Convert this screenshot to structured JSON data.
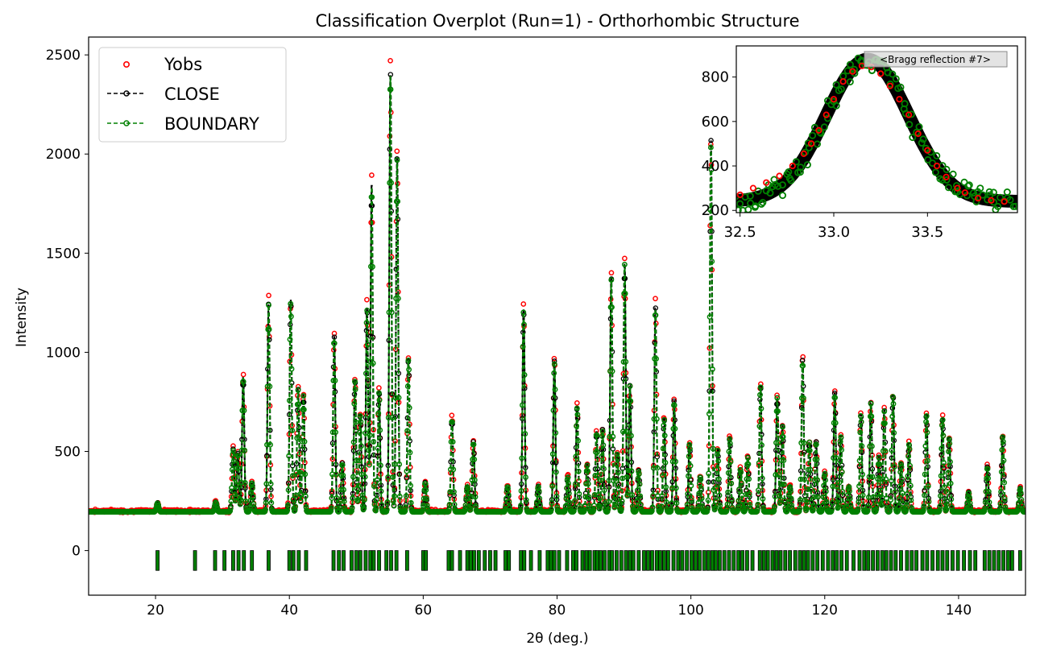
{
  "chart_data": [
    {
      "type": "scatter",
      "title": "Classification Overplot (Run=1) - Orthorhombic Structure",
      "xlabel": "2θ (deg.)",
      "ylabel": "Intensity",
      "xlim": [
        10,
        150
      ],
      "ylim": [
        -225,
        2590
      ],
      "xticks": [
        20,
        40,
        60,
        80,
        100,
        120,
        140
      ],
      "yticks": [
        0,
        500,
        1000,
        1500,
        2000,
        2500
      ],
      "grid": false,
      "legend_position": "top-left",
      "legend": [
        {
          "label": "Yobs",
          "color": "#ff0000",
          "style": "open-circle"
        },
        {
          "label": "CLOSE",
          "color": "#000000",
          "style": "dashed-line-circle"
        },
        {
          "label": "BOUNDARY",
          "color": "#008000",
          "style": "dashed-line-circle"
        }
      ],
      "background": 200,
      "peaks": [
        {
          "x": 20.3,
          "y": 245
        },
        {
          "x": 29.0,
          "y": 250
        },
        {
          "x": 31.6,
          "y": 520
        },
        {
          "x": 32.3,
          "y": 500
        },
        {
          "x": 33.1,
          "y": 895
        },
        {
          "x": 34.4,
          "y": 350
        },
        {
          "x": 36.9,
          "y": 1270
        },
        {
          "x": 40.2,
          "y": 1285
        },
        {
          "x": 41.3,
          "y": 830
        },
        {
          "x": 42.1,
          "y": 800
        },
        {
          "x": 46.7,
          "y": 1100
        },
        {
          "x": 47.9,
          "y": 450
        },
        {
          "x": 49.8,
          "y": 880
        },
        {
          "x": 50.6,
          "y": 700
        },
        {
          "x": 51.6,
          "y": 1250
        },
        {
          "x": 52.3,
          "y": 1880
        },
        {
          "x": 53.4,
          "y": 820
        },
        {
          "x": 55.1,
          "y": 2455
        },
        {
          "x": 56.1,
          "y": 2020
        },
        {
          "x": 57.8,
          "y": 990
        },
        {
          "x": 60.3,
          "y": 350
        },
        {
          "x": 64.3,
          "y": 680
        },
        {
          "x": 66.6,
          "y": 330
        },
        {
          "x": 67.5,
          "y": 560
        },
        {
          "x": 72.6,
          "y": 330
        },
        {
          "x": 75.0,
          "y": 1240
        },
        {
          "x": 77.2,
          "y": 330
        },
        {
          "x": 79.6,
          "y": 970
        },
        {
          "x": 81.6,
          "y": 380
        },
        {
          "x": 83.0,
          "y": 740
        },
        {
          "x": 84.5,
          "y": 440
        },
        {
          "x": 85.9,
          "y": 610
        },
        {
          "x": 86.8,
          "y": 620
        },
        {
          "x": 88.1,
          "y": 1400
        },
        {
          "x": 89.0,
          "y": 500
        },
        {
          "x": 90.1,
          "y": 1480
        },
        {
          "x": 90.9,
          "y": 850
        },
        {
          "x": 92.2,
          "y": 410
        },
        {
          "x": 94.7,
          "y": 1250
        },
        {
          "x": 96.0,
          "y": 680
        },
        {
          "x": 97.5,
          "y": 770
        },
        {
          "x": 99.8,
          "y": 550
        },
        {
          "x": 101.4,
          "y": 380
        },
        {
          "x": 103.0,
          "y": 2100
        },
        {
          "x": 104.0,
          "y": 520
        },
        {
          "x": 105.8,
          "y": 580
        },
        {
          "x": 107.4,
          "y": 420
        },
        {
          "x": 108.5,
          "y": 480
        },
        {
          "x": 110.4,
          "y": 850
        },
        {
          "x": 112.9,
          "y": 790
        },
        {
          "x": 113.7,
          "y": 640
        },
        {
          "x": 114.8,
          "y": 330
        },
        {
          "x": 116.7,
          "y": 980
        },
        {
          "x": 117.7,
          "y": 560
        },
        {
          "x": 118.7,
          "y": 560
        },
        {
          "x": 120.0,
          "y": 400
        },
        {
          "x": 121.5,
          "y": 810
        },
        {
          "x": 122.4,
          "y": 590
        },
        {
          "x": 123.6,
          "y": 330
        },
        {
          "x": 125.4,
          "y": 700
        },
        {
          "x": 126.9,
          "y": 760
        },
        {
          "x": 128.1,
          "y": 480
        },
        {
          "x": 128.9,
          "y": 720
        },
        {
          "x": 130.2,
          "y": 800
        },
        {
          "x": 131.4,
          "y": 450
        },
        {
          "x": 132.6,
          "y": 550
        },
        {
          "x": 135.2,
          "y": 700
        },
        {
          "x": 137.6,
          "y": 680
        },
        {
          "x": 138.6,
          "y": 580
        },
        {
          "x": 141.5,
          "y": 300
        },
        {
          "x": 144.3,
          "y": 430
        },
        {
          "x": 146.6,
          "y": 590
        },
        {
          "x": 149.2,
          "y": 320
        }
      ],
      "bragg_reflections": [
        20.3,
        25.9,
        28.9,
        30.3,
        31.6,
        32.4,
        33.2,
        34.4,
        36.9,
        40.0,
        40.6,
        41.4,
        42.5,
        46.6,
        47.4,
        48.1,
        49.3,
        50.0,
        50.6,
        51.4,
        52.1,
        52.6,
        53.4,
        54.5,
        55.2,
        56.0,
        57.6,
        60.0,
        60.4,
        63.8,
        64.3,
        65.5,
        66.6,
        67.1,
        67.6,
        68.3,
        69.2,
        70.0,
        70.8,
        72.3,
        72.8,
        74.6,
        75.1,
        76.1,
        77.4,
        78.6,
        79.1,
        79.6,
        80.3,
        81.5,
        82.4,
        82.9,
        83.8,
        84.4,
        84.9,
        85.6,
        86.0,
        86.5,
        87.1,
        87.8,
        88.2,
        88.9,
        89.6,
        90.3,
        90.9,
        91.4,
        92.2,
        93.0,
        93.6,
        94.2,
        94.9,
        95.4,
        96.0,
        96.6,
        97.4,
        98.1,
        98.7,
        99.4,
        100.1,
        100.7,
        101.3,
        102.0,
        102.6,
        103.2,
        103.7,
        104.3,
        105.0,
        105.7,
        106.4,
        107.1,
        107.7,
        108.4,
        109.2,
        110.3,
        110.9,
        111.5,
        112.2,
        112.8,
        113.4,
        114.1,
        114.8,
        115.6,
        116.3,
        116.9,
        117.5,
        118.2,
        118.9,
        119.7,
        120.5,
        121.2,
        121.8,
        122.5,
        123.3,
        124.3,
        125.2,
        125.9,
        126.5,
        127.2,
        127.9,
        128.6,
        129.2,
        129.9,
        130.6,
        131.4,
        132.3,
        133.0,
        133.7,
        134.6,
        135.3,
        136.1,
        136.9,
        137.6,
        138.3,
        139.1,
        139.9,
        140.8,
        141.7,
        142.5,
        143.9,
        144.6,
        145.3,
        146.0,
        146.7,
        147.4,
        148.0,
        149.2
      ],
      "tick_band_y": [
        -100,
        0
      ]
    },
    {
      "type": "scatter",
      "inset": true,
      "annotation": "<Bragg reflection #7>",
      "xlim": [
        32.48,
        33.98
      ],
      "ylim": [
        190,
        940
      ],
      "xticks": [
        32.5,
        33.0,
        33.5
      ],
      "xtick_labels": [
        "32.5",
        "33.0",
        "33.5"
      ],
      "yticks": [
        200,
        400,
        600,
        800
      ],
      "peak": {
        "x": 33.18,
        "y": 880,
        "sigma": 0.22,
        "background": 240
      },
      "yobs_points": [
        {
          "x": 32.5,
          "y": 270
        },
        {
          "x": 32.57,
          "y": 300
        },
        {
          "x": 32.64,
          "y": 325
        },
        {
          "x": 32.71,
          "y": 355
        },
        {
          "x": 32.78,
          "y": 400
        },
        {
          "x": 32.84,
          "y": 455
        },
        {
          "x": 32.88,
          "y": 500
        },
        {
          "x": 32.92,
          "y": 560
        },
        {
          "x": 32.96,
          "y": 630
        },
        {
          "x": 33.0,
          "y": 700
        },
        {
          "x": 33.05,
          "y": 780
        },
        {
          "x": 33.1,
          "y": 825
        },
        {
          "x": 33.15,
          "y": 850
        },
        {
          "x": 33.2,
          "y": 845
        },
        {
          "x": 33.25,
          "y": 815
        },
        {
          "x": 33.3,
          "y": 760
        },
        {
          "x": 33.35,
          "y": 700
        },
        {
          "x": 33.4,
          "y": 630
        },
        {
          "x": 33.45,
          "y": 545
        },
        {
          "x": 33.5,
          "y": 470
        },
        {
          "x": 33.55,
          "y": 400
        },
        {
          "x": 33.6,
          "y": 350
        },
        {
          "x": 33.66,
          "y": 300
        },
        {
          "x": 33.7,
          "y": 280
        },
        {
          "x": 33.77,
          "y": 255
        },
        {
          "x": 33.84,
          "y": 245
        },
        {
          "x": 33.91,
          "y": 240
        }
      ]
    }
  ]
}
